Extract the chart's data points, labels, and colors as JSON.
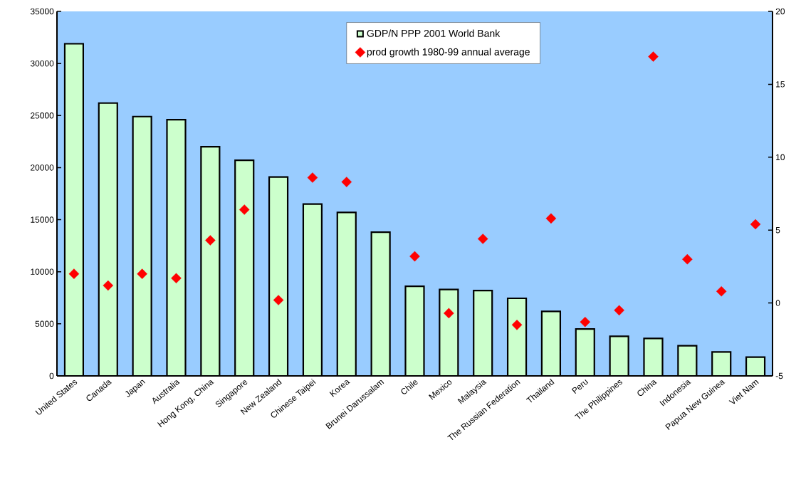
{
  "chart_data": {
    "type": "bar",
    "categories": [
      "United States",
      "Canada",
      "Japan",
      "Australia",
      "Hong Kong, China",
      "Singapore",
      "New Zealand",
      "Chinese Taipei",
      "Korea",
      "Brunei Darussalam",
      "Chile",
      "Mexico",
      "Malaysia",
      "The Russian Federation",
      "Thailand",
      "Peru",
      "The Philippines",
      "China",
      "Indonesia",
      "Papua New Guinea",
      "Viet Nam"
    ],
    "series": [
      {
        "name": "GDP/N PPP 2001 World Bank",
        "color": "#ccffcc",
        "values": [
          31900,
          26200,
          24900,
          24600,
          22000,
          20700,
          19100,
          16500,
          15700,
          13800,
          8600,
          8300,
          8200,
          7450,
          6200,
          4500,
          3800,
          3600,
          2900,
          2300,
          1800
        ]
      },
      {
        "name": "prod growth 1980-99 annual average",
        "type": "scatter",
        "axis": "y2",
        "marker": "diamond",
        "color": "#ff0000",
        "values": [
          2.0,
          1.2,
          2.0,
          1.7,
          4.3,
          6.4,
          0.2,
          8.6,
          8.3,
          null,
          3.2,
          -0.7,
          4.4,
          -1.5,
          5.8,
          -1.3,
          -0.5,
          16.9,
          3.0,
          0.8,
          5.4
        ]
      }
    ],
    "ylim": [
      0,
      35000
    ],
    "yticks": [
      0,
      5000,
      10000,
      15000,
      20000,
      25000,
      30000,
      35000
    ],
    "y2lim": [
      -5,
      20
    ],
    "y2ticks": [
      -5,
      0,
      5,
      10,
      15,
      20
    ],
    "grid": false,
    "legend": "top"
  }
}
